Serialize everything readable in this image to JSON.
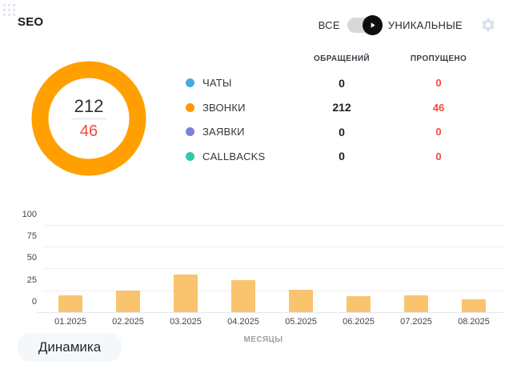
{
  "widget": {
    "title": "SEO"
  },
  "header": {
    "toggle": {
      "left_label": "ВСЕ",
      "right_label": "УНИКАЛЬНЫЕ",
      "state": "right",
      "knob_color": "#0E0E0E",
      "track_color": "#D8D8D8"
    },
    "gear_icon": "settings-gear",
    "gear_color": "#DCE1F0"
  },
  "donut": {
    "total": "212",
    "missed": "46",
    "ring_color": "#FFA000",
    "missed_color": "#F4493C"
  },
  "legend": {
    "columns": [
      "ОБРАЩЕНИЙ",
      "ПРОПУЩЕНО"
    ],
    "rows": [
      {
        "label": "ЧАТЫ",
        "color": "#45AAE4",
        "requests": "0",
        "missed": "0"
      },
      {
        "label": "ЗВОНКИ",
        "color": "#FF9800",
        "requests": "212",
        "missed": "46"
      },
      {
        "label": "ЗАЯВКИ",
        "color": "#7C82DA",
        "requests": "0",
        "missed": "0"
      },
      {
        "label": "CALLBACKS",
        "color": "#2EC9A7",
        "requests": "0",
        "missed": "0"
      }
    ]
  },
  "chart_data": {
    "type": "bar",
    "categories": [
      "01.2025",
      "02.2025",
      "03.2025",
      "04.2025",
      "05.2025",
      "06.2025",
      "07.2025",
      "08.2025"
    ],
    "values": [
      19,
      25,
      43,
      37,
      26,
      18,
      19,
      15
    ],
    "title": "",
    "xlabel": "МЕСЯЦЫ",
    "ylabel": "",
    "yticks": [
      0,
      25,
      50,
      75,
      100
    ],
    "ylim": [
      0,
      100
    ],
    "bar_color": "#FAC36E",
    "grid": "horizontal-dotted",
    "legend_position": "none"
  },
  "footer": {
    "tab_label": "Динамика"
  }
}
